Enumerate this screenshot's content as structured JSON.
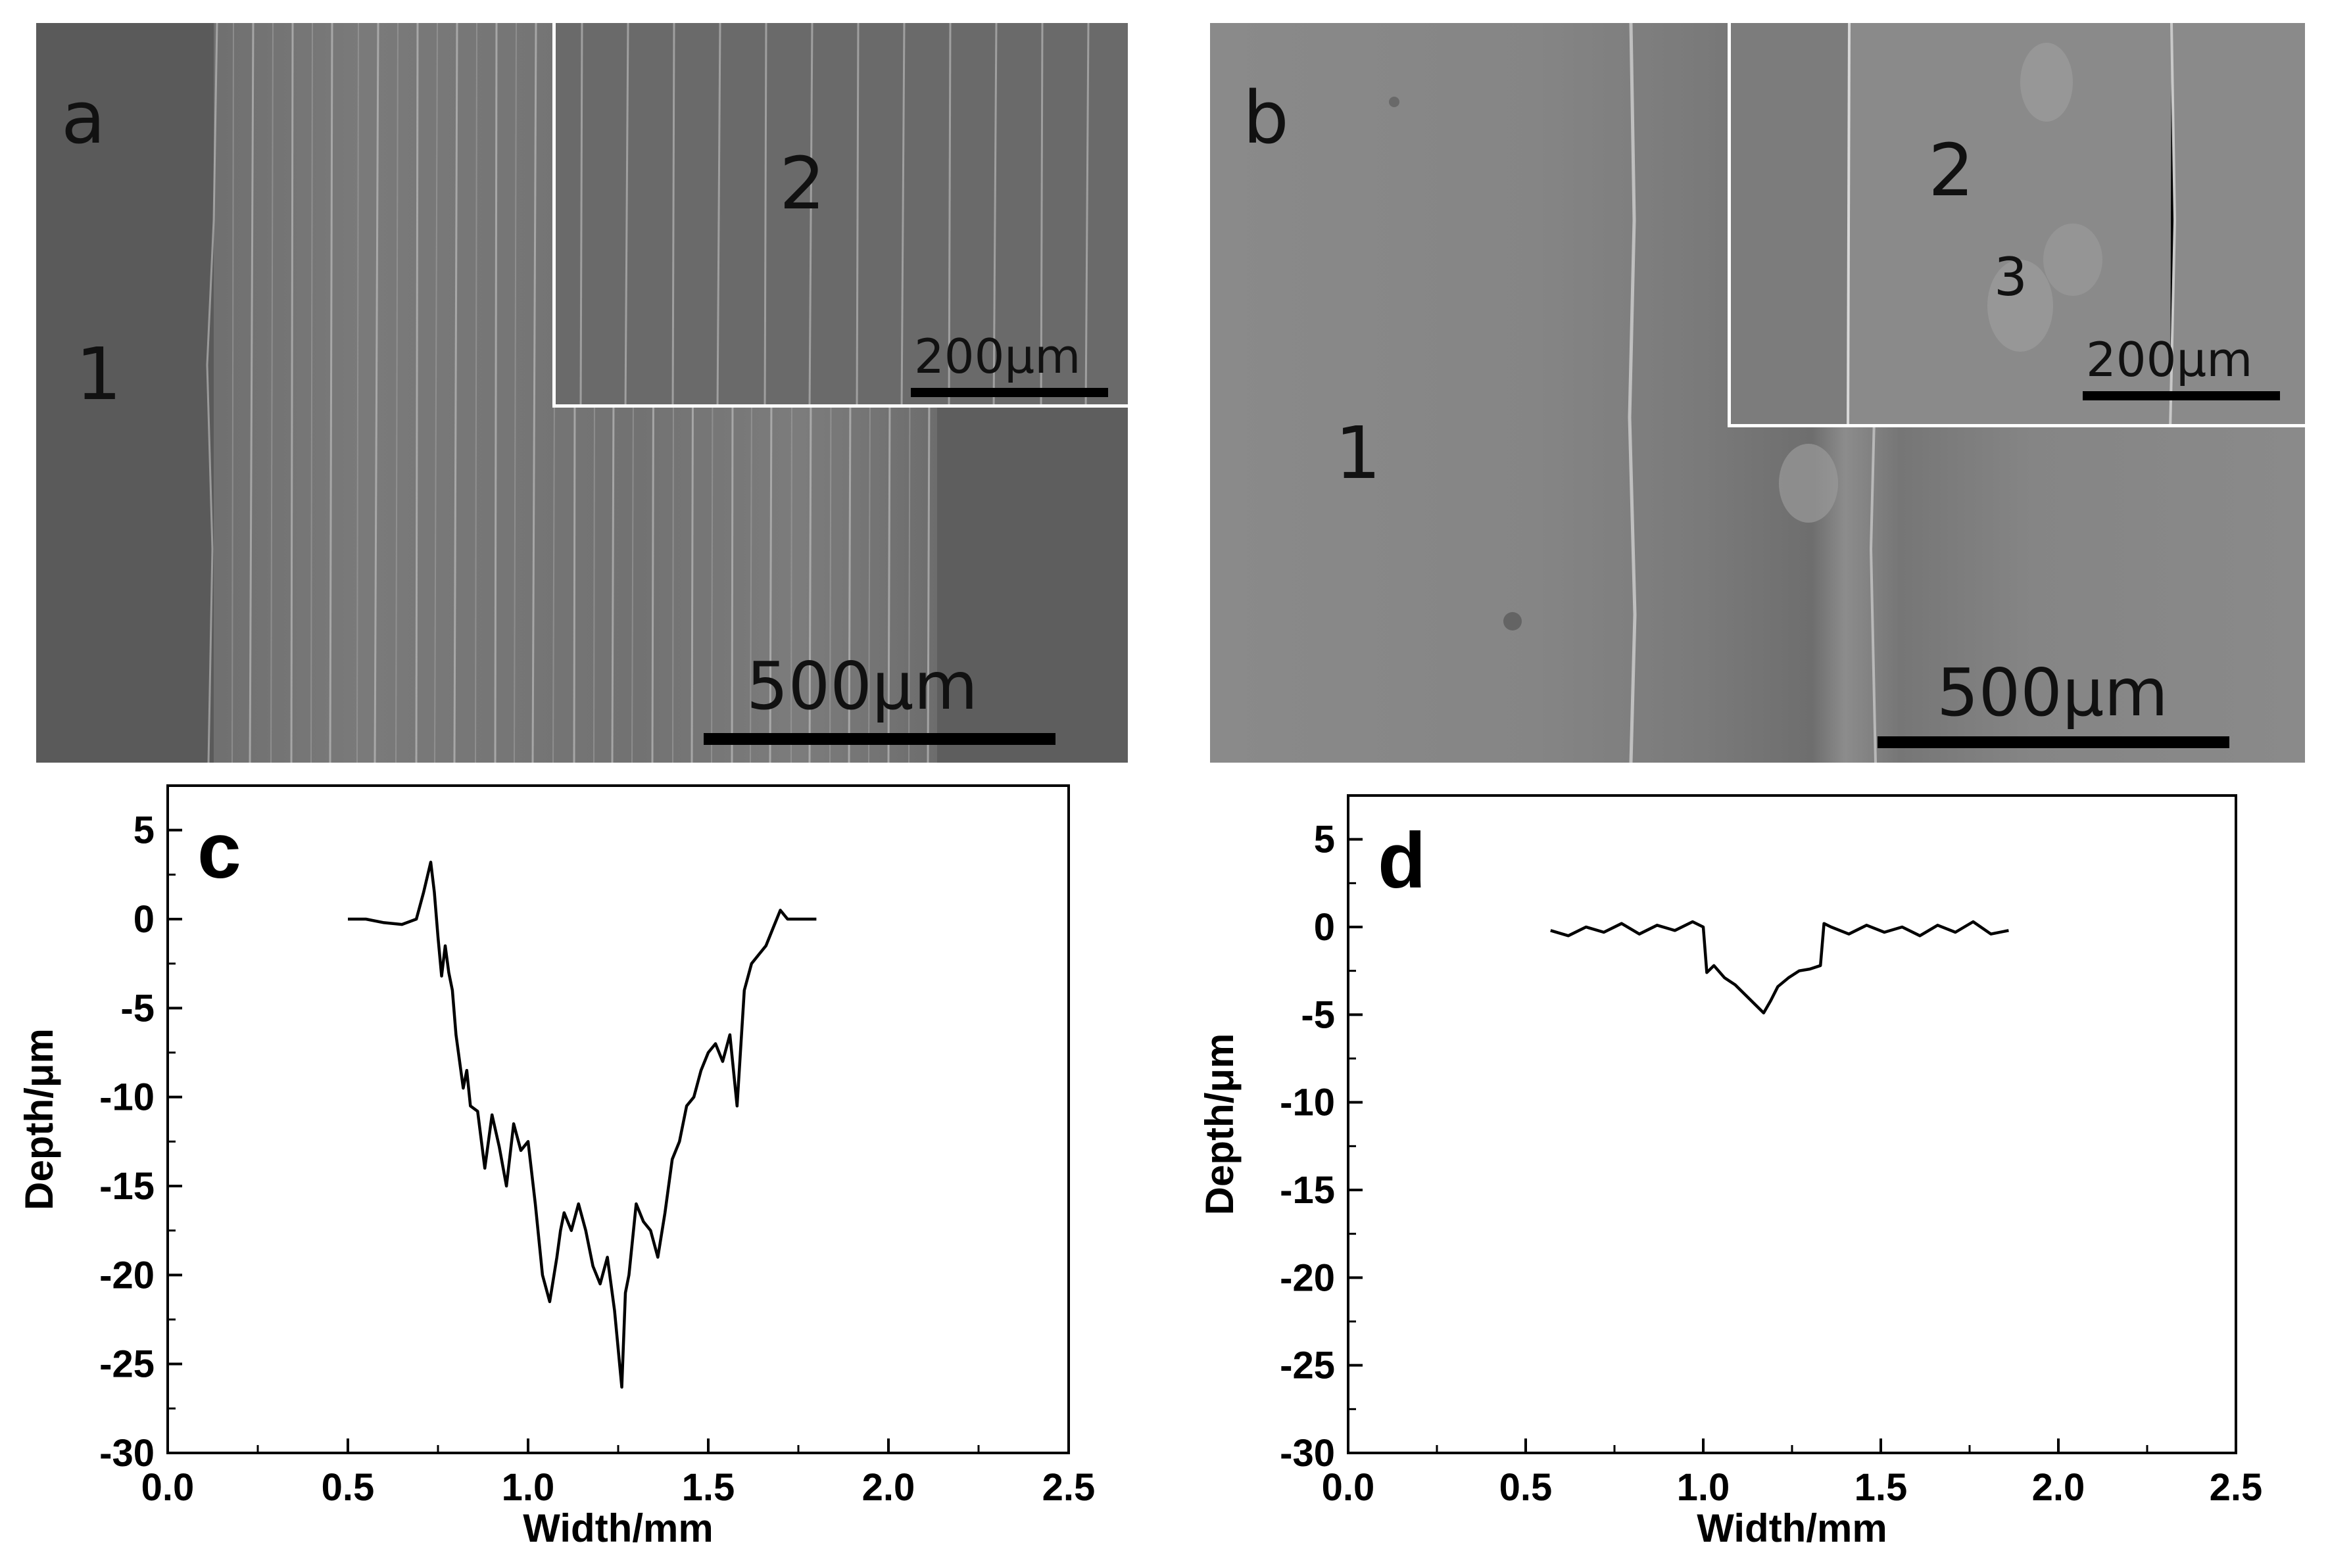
{
  "panels": {
    "a": {
      "letter": "a",
      "regions": [
        "1",
        "2"
      ],
      "main_scale": "500μm",
      "inset_scale": "200μm"
    },
    "b": {
      "letter": "b",
      "regions": [
        "1",
        "2",
        "3"
      ],
      "main_scale": "500μm",
      "inset_scale": "200μm"
    }
  },
  "chart_data": [
    {
      "type": "line",
      "panel_letter": "c",
      "xlabel": "Width/mm",
      "ylabel": "Depth/μm",
      "xlim": [
        0.0,
        2.5
      ],
      "ylim": [
        -30,
        7.5
      ],
      "xticks": [
        "0.0",
        "0.5",
        "1.0",
        "1.5",
        "2.0",
        "2.5"
      ],
      "yticks": [
        "5",
        "0",
        "-5",
        "-10",
        "-15",
        "-20",
        "-25",
        "-30"
      ],
      "x": [
        0.5,
        0.55,
        0.6,
        0.65,
        0.69,
        0.71,
        0.73,
        0.74,
        0.75,
        0.76,
        0.77,
        0.78,
        0.79,
        0.8,
        0.82,
        0.83,
        0.84,
        0.86,
        0.88,
        0.9,
        0.92,
        0.94,
        0.96,
        0.98,
        1.0,
        1.02,
        1.04,
        1.06,
        1.08,
        1.09,
        1.1,
        1.12,
        1.14,
        1.16,
        1.18,
        1.2,
        1.22,
        1.24,
        1.26,
        1.27,
        1.28,
        1.3,
        1.32,
        1.34,
        1.36,
        1.38,
        1.4,
        1.42,
        1.44,
        1.46,
        1.48,
        1.5,
        1.52,
        1.54,
        1.56,
        1.58,
        1.6,
        1.62,
        1.64,
        1.66,
        1.68,
        1.7,
        1.72,
        1.75,
        1.8
      ],
      "y": [
        0,
        0,
        -0.2,
        -0.3,
        0,
        1.5,
        3.2,
        1.5,
        -1,
        -3.2,
        -1.5,
        -3,
        -4,
        -6.5,
        -9.5,
        -8.5,
        -10.5,
        -10.8,
        -14,
        -11,
        -12.8,
        -15,
        -11.5,
        -13,
        -12.5,
        -16,
        -20,
        -21.5,
        -19,
        -17.5,
        -16.5,
        -17.5,
        -16,
        -17.5,
        -19.5,
        -20.5,
        -19,
        -22,
        -26.3,
        -21,
        -20,
        -16,
        -17,
        -17.5,
        -19,
        -16.5,
        -13.5,
        -12.5,
        -10.5,
        -10,
        -8.5,
        -7.5,
        -7,
        -8,
        -6.5,
        -10.5,
        -4,
        -2.5,
        -2,
        -1.5,
        -0.5,
        0.5,
        0,
        0,
        0
      ]
    },
    {
      "type": "line",
      "panel_letter": "d",
      "xlabel": "Width/mm",
      "ylabel": "Depth/μm",
      "xlim": [
        0.0,
        2.5
      ],
      "ylim": [
        -30,
        7.5
      ],
      "xticks": [
        "0.0",
        "0.5",
        "1.0",
        "1.5",
        "2.0",
        "2.5"
      ],
      "yticks": [
        "5",
        "0",
        "-5",
        "-10",
        "-15",
        "-20",
        "-25",
        "-30"
      ],
      "x": [
        0.57,
        0.62,
        0.67,
        0.72,
        0.77,
        0.82,
        0.87,
        0.92,
        0.97,
        1.0,
        1.01,
        1.03,
        1.06,
        1.09,
        1.12,
        1.15,
        1.17,
        1.19,
        1.21,
        1.24,
        1.27,
        1.3,
        1.33,
        1.34,
        1.36,
        1.41,
        1.46,
        1.51,
        1.56,
        1.61,
        1.66,
        1.71,
        1.76,
        1.81,
        1.86
      ],
      "y": [
        -0.2,
        -0.5,
        0,
        -0.3,
        0.2,
        -0.4,
        0.1,
        -0.2,
        0.3,
        0,
        -2.6,
        -2.2,
        -2.9,
        -3.3,
        -3.9,
        -4.5,
        -4.9,
        -4.2,
        -3.4,
        -2.9,
        -2.5,
        -2.4,
        -2.2,
        0.2,
        0,
        -0.4,
        0.1,
        -0.3,
        0,
        -0.5,
        0.1,
        -0.3,
        0.3,
        -0.4,
        -0.2
      ]
    }
  ]
}
